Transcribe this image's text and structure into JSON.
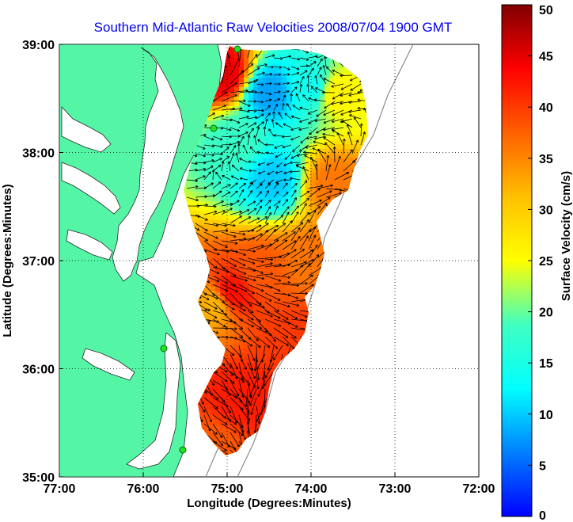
{
  "chart_data": {
    "type": "heatmap",
    "title": "Southern Mid-Atlantic Raw Velocities 2008/07/04 1900 GMT",
    "xlabel": "Longitude (Degrees:Minutes)",
    "ylabel": "Latitude (Degrees:Minutes)",
    "colorbar_label": "Surface Velocity (cm/s)",
    "xlim": [
      -77,
      -72
    ],
    "ylim": [
      35,
      39
    ],
    "x_ticks": [
      {
        "value": -77,
        "label": "77:00"
      },
      {
        "value": -76,
        "label": "76:00"
      },
      {
        "value": -75,
        "label": "75:00"
      },
      {
        "value": -74,
        "label": "74:00"
      },
      {
        "value": -73,
        "label": "73:00"
      },
      {
        "value": -72,
        "label": "72:00"
      }
    ],
    "y_ticks": [
      {
        "value": 39,
        "label": "39:00"
      },
      {
        "value": 38,
        "label": "38:00"
      },
      {
        "value": 37,
        "label": "37:00"
      },
      {
        "value": 36,
        "label": "36:00"
      },
      {
        "value": 35,
        "label": "35:00"
      }
    ],
    "colorbar_range": [
      0,
      50
    ],
    "colorbar_ticks": [
      {
        "value": 0,
        "label": "0"
      },
      {
        "value": 5,
        "label": "5"
      },
      {
        "value": 10,
        "label": "10"
      },
      {
        "value": 15,
        "label": "15"
      },
      {
        "value": 20,
        "label": "20"
      },
      {
        "value": 25,
        "label": "25"
      },
      {
        "value": 30,
        "label": "30"
      },
      {
        "value": 35,
        "label": "35"
      },
      {
        "value": 40,
        "label": "40"
      },
      {
        "value": 45,
        "label": "45"
      },
      {
        "value": 50,
        "label": "50"
      }
    ],
    "grid": "dotted",
    "colormap": "jet",
    "land_color": "#55f5a6",
    "water_color": "#ffffff",
    "current_regions": [
      {
        "lon": -74.5,
        "lat": 38.55,
        "speed": 8
      },
      {
        "lon": -74.45,
        "lat": 37.75,
        "speed": 10
      },
      {
        "lon": -74.0,
        "lat": 38.6,
        "speed": 14
      },
      {
        "lon": -74.9,
        "lat": 38.1,
        "speed": 18
      },
      {
        "lon": -73.75,
        "lat": 37.7,
        "speed": 36
      },
      {
        "lon": -74.0,
        "lat": 37.0,
        "speed": 36
      },
      {
        "lon": -74.6,
        "lat": 36.9,
        "speed": 38
      },
      {
        "lon": -74.95,
        "lat": 36.7,
        "speed": 43
      },
      {
        "lon": -74.2,
        "lat": 36.3,
        "speed": 40
      },
      {
        "lon": -74.85,
        "lat": 35.7,
        "speed": 42
      },
      {
        "lon": -75.15,
        "lat": 35.3,
        "speed": 38
      },
      {
        "lon": -75.05,
        "lat": 38.72,
        "speed": 45
      },
      {
        "lon": -73.7,
        "lat": 38.55,
        "speed": 26
      },
      {
        "lon": -75.15,
        "lat": 36.6,
        "speed": 32
      }
    ]
  }
}
